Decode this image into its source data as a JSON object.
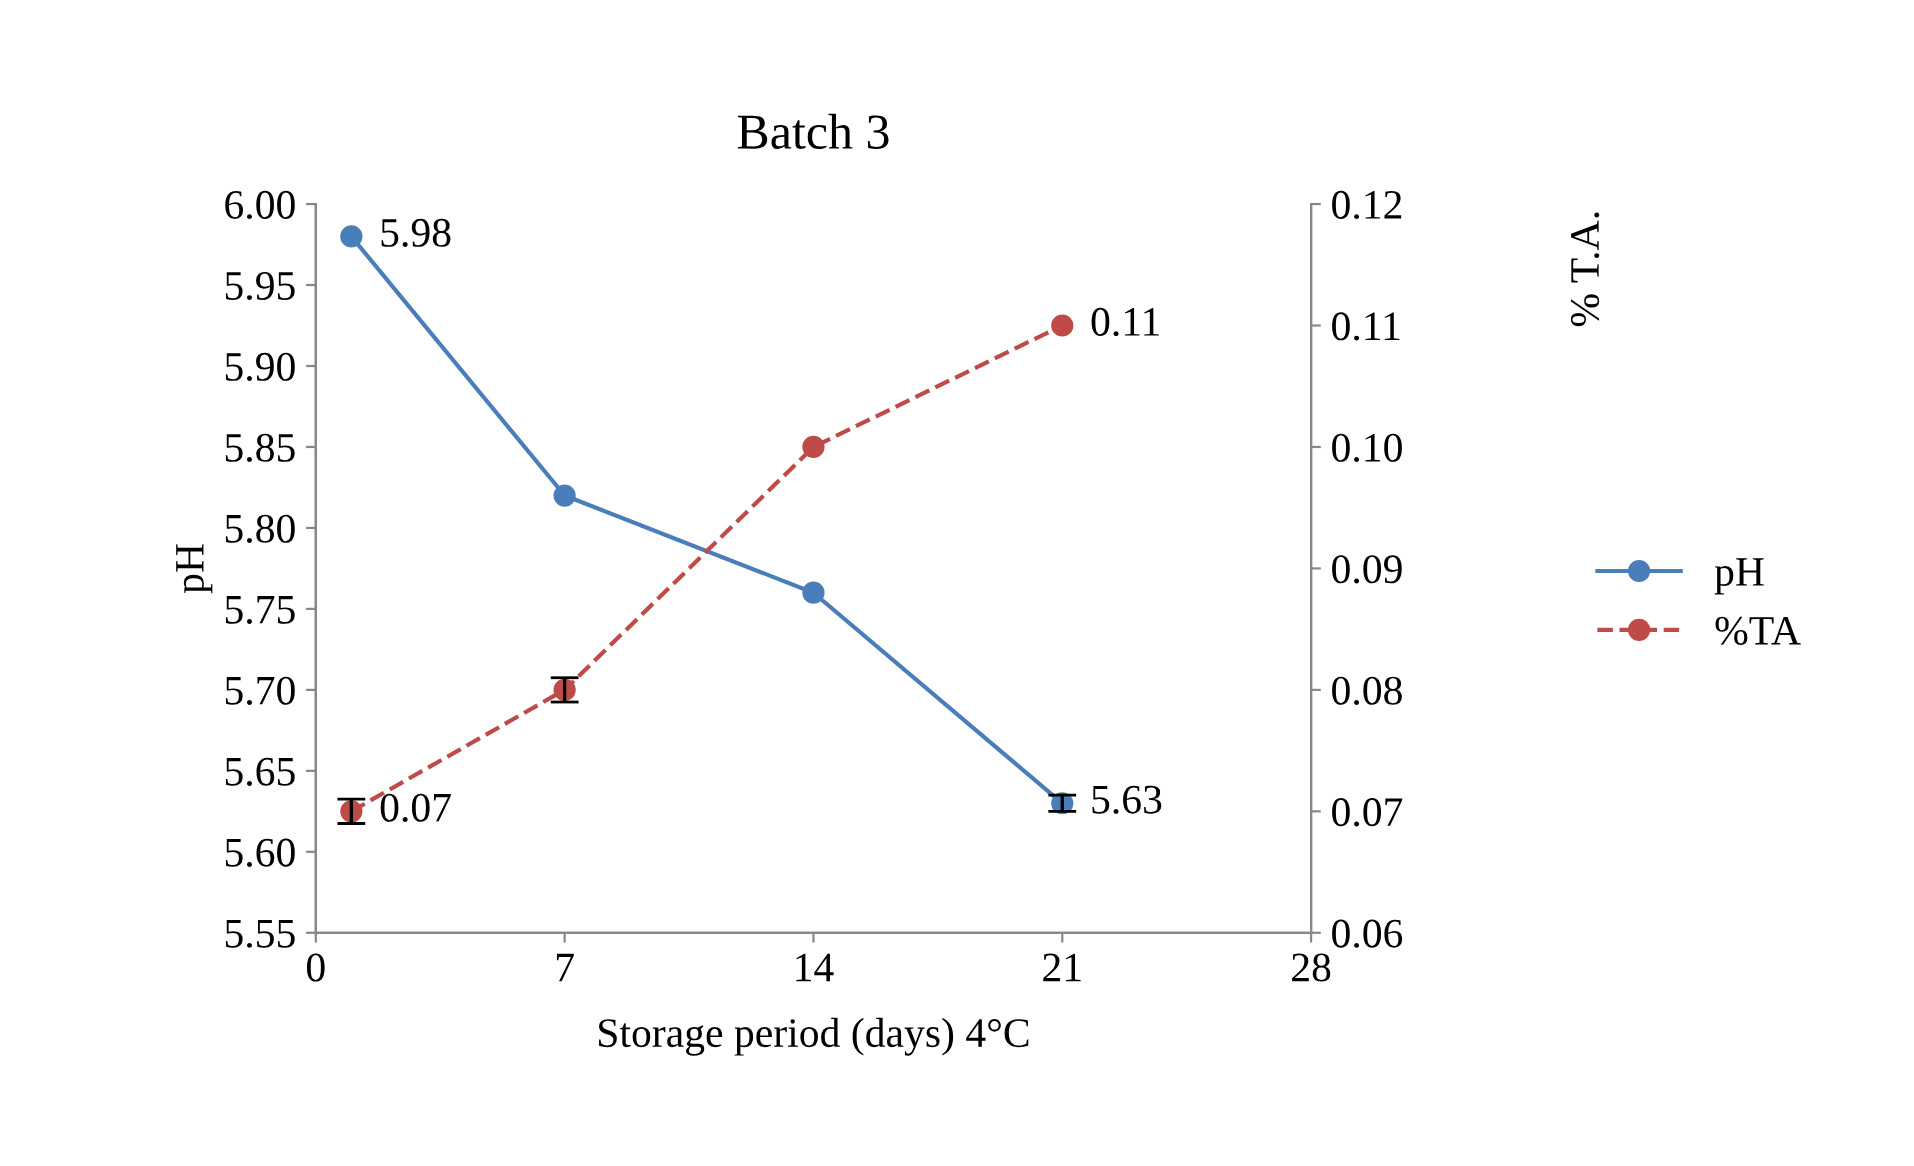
{
  "chart_data": {
    "type": "line",
    "title": "Batch 3",
    "xlabel": "Storage period (days) 4°C",
    "ylabel": "pH",
    "y2label": "% T.A.",
    "x": [
      1,
      7,
      14,
      21
    ],
    "series": [
      {
        "name": "pH",
        "color": "#4a7ebb",
        "values": [
          5.98,
          5.82,
          5.76,
          5.63
        ],
        "errors": [
          null,
          null,
          null,
          0.005
        ],
        "value_labels": [
          "5.98",
          null,
          null,
          "5.63"
        ],
        "line_style": "solid",
        "marker": "circle"
      },
      {
        "name": "%TA",
        "color": "#be4b48",
        "values": [
          0.07,
          0.08,
          0.1,
          0.11
        ],
        "errors": [
          0.001,
          0.001,
          null,
          null
        ],
        "value_labels": [
          "0.07",
          null,
          null,
          "0.11"
        ],
        "line_style": "dashed",
        "marker": "circle",
        "axis": "y2"
      }
    ],
    "xlim": [
      0,
      28
    ],
    "xticks": [
      0,
      7,
      14,
      21,
      28
    ],
    "ylim": [
      5.55,
      6.0
    ],
    "yticks": [
      {
        "value": 5.55,
        "label": "5.55"
      },
      {
        "value": 5.6,
        "label": "5.60"
      },
      {
        "value": 5.65,
        "label": "5.65"
      },
      {
        "value": 5.7,
        "label": "5.70"
      },
      {
        "value": 5.75,
        "label": "5.75"
      },
      {
        "value": 5.8,
        "label": "5.80"
      },
      {
        "value": 5.85,
        "label": "5.85"
      },
      {
        "value": 5.9,
        "label": "5.90"
      },
      {
        "value": 5.95,
        "label": "5.95"
      },
      {
        "value": 6.0,
        "label": "6.00"
      }
    ],
    "y2lim": [
      0.06,
      0.12
    ],
    "y2ticks": [
      {
        "value": 0.06,
        "label": "0.06"
      },
      {
        "value": 0.07,
        "label": "0.07"
      },
      {
        "value": 0.08,
        "label": "0.08"
      },
      {
        "value": 0.09,
        "label": "0.09"
      },
      {
        "value": 0.1,
        "label": "0.10"
      },
      {
        "value": 0.11,
        "label": "0.11"
      },
      {
        "value": 0.12,
        "label": "0.12"
      }
    ],
    "grid": false,
    "legend": "right"
  }
}
